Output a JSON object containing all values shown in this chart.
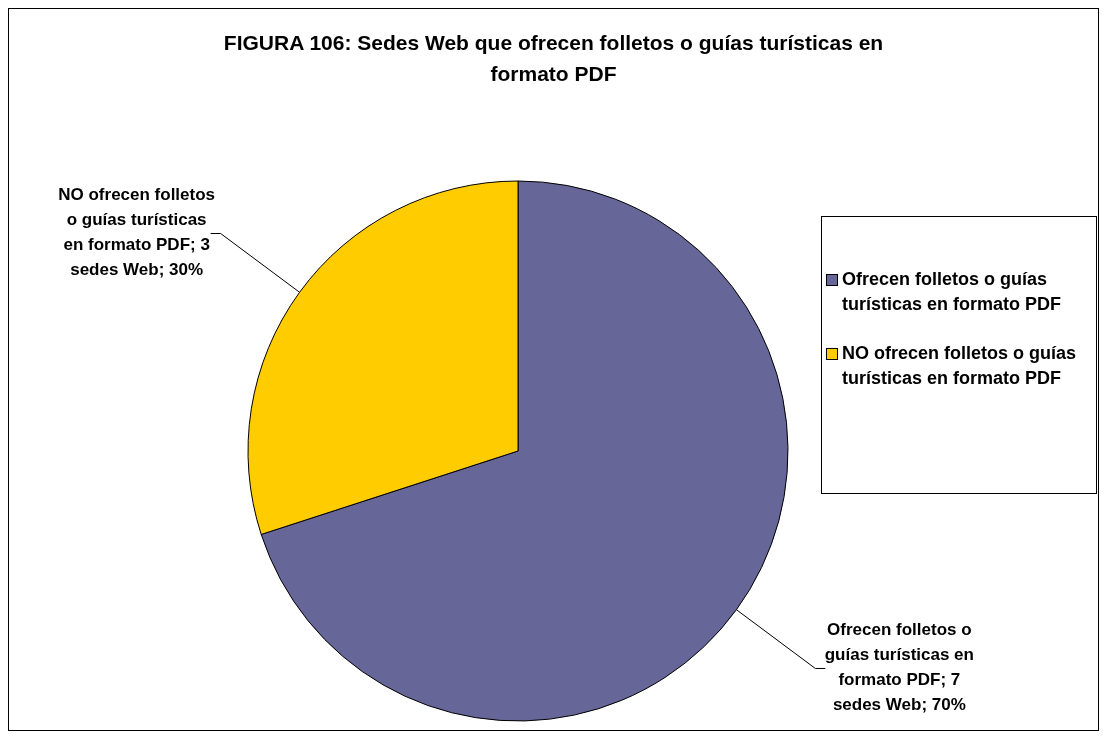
{
  "chart_data": {
    "type": "pie",
    "title": "FIGURA 106: Sedes Web que ofrecen folletos o guías turísticas en formato PDF",
    "categories": [
      "Ofrecen folletos o guías turísticas en formato PDF",
      "NO ofrecen folletos o guías turísticas en formato PDF"
    ],
    "values": [
      7,
      3
    ],
    "colors": [
      "#666699",
      "#ffcc00"
    ],
    "value_labels": [
      "Ofrecen folletos o guías turísticas en formato PDF; 7 sedes Web; 70%",
      "NO ofrecen folletos o guías turísticas en formato PDF; 3 sedes Web; 30%"
    ],
    "legend": "right"
  }
}
